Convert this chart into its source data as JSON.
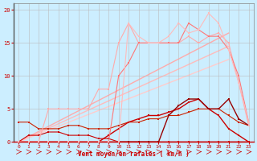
{
  "xlabel": "Vent moyen/en rafales ( km/h )",
  "xlim": [
    -0.5,
    23.5
  ],
  "ylim": [
    0,
    21
  ],
  "yticks": [
    0,
    5,
    10,
    15,
    20
  ],
  "xticks": [
    0,
    1,
    2,
    3,
    4,
    5,
    6,
    7,
    8,
    9,
    10,
    11,
    12,
    13,
    14,
    15,
    16,
    17,
    18,
    19,
    20,
    21,
    22,
    23
  ],
  "background_color": "#cceeff",
  "grid_color": "#bbbbbb",
  "series": [
    {
      "x": [
        0,
        1,
        2,
        3,
        4,
        5,
        6,
        7,
        8,
        9,
        10,
        11,
        12,
        13,
        14,
        15,
        16,
        17,
        18,
        19,
        20,
        21,
        22,
        23
      ],
      "y": [
        0,
        0,
        0,
        0,
        0,
        0,
        0,
        0,
        0,
        0,
        0,
        0,
        0,
        0,
        0,
        0,
        0,
        0,
        0,
        0,
        0,
        0,
        0,
        0
      ],
      "color": "#cc0000",
      "lw": 0.8,
      "marker": "s",
      "ms": 1.5
    },
    {
      "x": [
        0,
        1,
        2,
        3,
        4,
        5,
        6,
        7,
        8,
        9,
        10,
        11,
        12,
        13,
        14,
        15,
        16,
        17,
        18,
        19,
        20,
        21,
        22,
        23
      ],
      "y": [
        0,
        1,
        1,
        1.5,
        1.5,
        1,
        1,
        1,
        0.5,
        0.5,
        0,
        0,
        0,
        0,
        0,
        0,
        0,
        0,
        0,
        0,
        0,
        0,
        0,
        0
      ],
      "color": "#cc0000",
      "lw": 0.8,
      "marker": "s",
      "ms": 1.5
    },
    {
      "x": [
        0,
        1,
        2,
        3,
        4,
        5,
        6,
        7,
        8,
        9,
        10,
        11,
        12,
        13,
        14,
        15,
        16,
        17,
        18,
        19,
        20,
        21,
        22,
        23
      ],
      "y": [
        3,
        3,
        2,
        2,
        2,
        2.5,
        2.5,
        2,
        2,
        2,
        2.5,
        3,
        3,
        3.5,
        3.5,
        4,
        4,
        4.5,
        5,
        5,
        5,
        4,
        3,
        2.5
      ],
      "color": "#cc2200",
      "lw": 0.8,
      "marker": "s",
      "ms": 1.5
    },
    {
      "x": [
        0,
        1,
        2,
        3,
        4,
        5,
        6,
        7,
        8,
        9,
        10,
        11,
        12,
        13,
        14,
        15,
        16,
        17,
        18,
        19,
        20,
        21,
        22,
        23
      ],
      "y": [
        0,
        0,
        0,
        0,
        0,
        0,
        0,
        0,
        0,
        1,
        2,
        3,
        3.5,
        4,
        4,
        4.5,
        5,
        6,
        6.5,
        5,
        4,
        2,
        1,
        0
      ],
      "color": "#cc0000",
      "lw": 1.0,
      "marker": "s",
      "ms": 2.0
    },
    {
      "x": [
        0,
        1,
        2,
        3,
        4,
        5,
        6,
        7,
        8,
        9,
        10,
        11,
        12,
        13,
        14,
        15,
        16,
        17,
        18,
        19,
        20,
        21,
        22,
        23
      ],
      "y": [
        0,
        0,
        0,
        0,
        0,
        0,
        0,
        0,
        0,
        0,
        0,
        0,
        0,
        0,
        0,
        4,
        5.5,
        6.5,
        6.5,
        5,
        5,
        6.5,
        3.5,
        2.5
      ],
      "color": "#990000",
      "lw": 1.0,
      "marker": "s",
      "ms": 2.0
    },
    {
      "x": [
        0,
        1,
        2,
        3,
        4,
        5,
        6,
        7,
        8,
        9,
        10,
        11,
        12,
        13,
        14,
        15,
        16,
        17,
        18,
        19,
        20,
        21,
        22,
        23
      ],
      "y": [
        0,
        0,
        0,
        5,
        5,
        5,
        5,
        5,
        8,
        8,
        15,
        18,
        15,
        15,
        15,
        15,
        15,
        16,
        15,
        16,
        16.5,
        15,
        9,
        2.5
      ],
      "color": "#ffaaaa",
      "lw": 0.8,
      "marker": "s",
      "ms": 1.5
    },
    {
      "x": [
        0,
        1,
        2,
        3,
        4,
        5,
        6,
        7,
        8,
        9,
        10,
        11,
        12,
        13,
        14,
        15,
        16,
        17,
        18,
        19,
        20,
        21,
        22,
        23
      ],
      "y": [
        0,
        0,
        0,
        0,
        0,
        0,
        0,
        0,
        0,
        0,
        10,
        12,
        15,
        15,
        15,
        15,
        15,
        18,
        17,
        16,
        16,
        14,
        10,
        3
      ],
      "color": "#ff7777",
      "lw": 0.8,
      "marker": "s",
      "ms": 1.5
    },
    {
      "x": [
        0,
        1,
        2,
        3,
        4,
        5,
        6,
        7,
        8,
        9,
        10,
        11,
        12,
        13,
        14,
        15,
        16,
        17,
        18,
        19,
        20,
        21,
        22,
        23
      ],
      "y": [
        0,
        0,
        0,
        0,
        0,
        0,
        0,
        0,
        0,
        0,
        0,
        18,
        16,
        15,
        15,
        16,
        18,
        16.5,
        17,
        19.5,
        18,
        14,
        9,
        3
      ],
      "color": "#ffbbbb",
      "lw": 0.8,
      "marker": "s",
      "ms": 1.5
    }
  ],
  "trend_lines": [
    {
      "x": [
        0,
        21
      ],
      "y": [
        0,
        16.5
      ],
      "color": "#ffaaaa",
      "lw": 1.0
    },
    {
      "x": [
        0,
        21
      ],
      "y": [
        0,
        14.5
      ],
      "color": "#ffbbbb",
      "lw": 1.0
    },
    {
      "x": [
        0,
        21
      ],
      "y": [
        0,
        12.5
      ],
      "color": "#ffcccc",
      "lw": 1.0
    }
  ]
}
